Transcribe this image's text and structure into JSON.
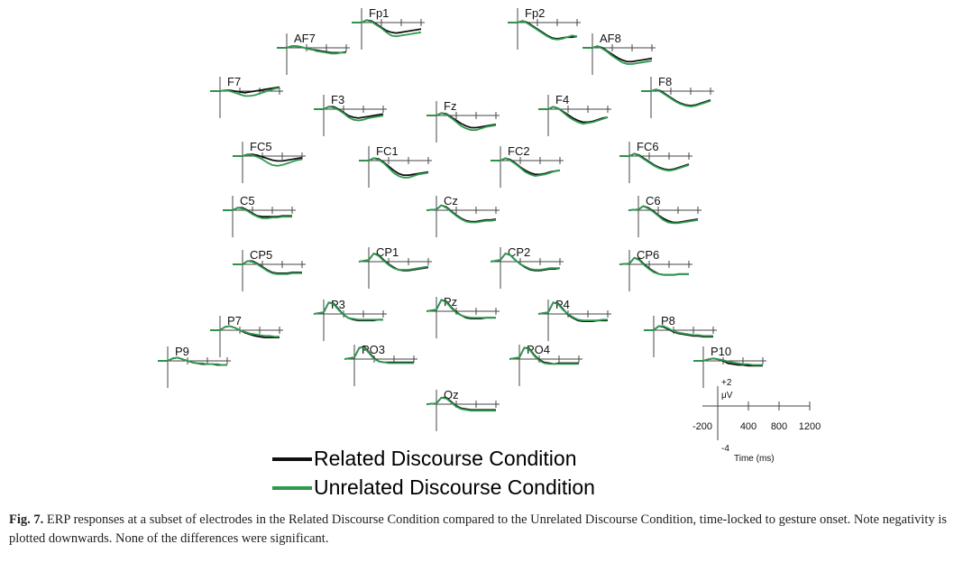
{
  "colors": {
    "related": "#111111",
    "unrelated": "#2e9a4f",
    "axis": "#444444"
  },
  "legend": [
    {
      "label": "Related Discourse Condition",
      "color": "#111111"
    },
    {
      "label": "Unrelated Discourse Condition",
      "color": "#2e9a4f"
    }
  ],
  "caption": {
    "label": "Fig. 7.",
    "text": "ERP responses at a subset of electrodes in the Related Discourse Condition compared to the Unrelated Discourse Condition, time-locked to gesture onset. Note negativity is plotted downwards. None of the differences were significant."
  },
  "scale_axis": {
    "x_ticks": [
      "-200",
      "400",
      "800",
      "1200"
    ],
    "x_label": "Time (ms)",
    "y_top": "+2",
    "y_unit": "μV",
    "y_bottom": "-4"
  },
  "chart_data": {
    "type": "line",
    "x_unit": "ms",
    "y_unit": "μV",
    "xlim": [
      -200,
      1200
    ],
    "ylim": [
      -4,
      2
    ],
    "negative_down": true,
    "x": [
      -200,
      0,
      100,
      200,
      300,
      400,
      500,
      600,
      700,
      800,
      900,
      1000,
      1100,
      1200
    ],
    "series_names": [
      "Related Discourse Condition",
      "Unrelated Discourse Condition"
    ],
    "electrodes": [
      {
        "name": "Fp1",
        "related": [
          0,
          0,
          0.3,
          0.2,
          -0.2,
          -0.6,
          -1.0,
          -1.2,
          -1.3,
          -1.2,
          -1.1,
          -1.0,
          -0.9,
          -0.8
        ],
        "unrelated": [
          0,
          0,
          0.3,
          0.1,
          -0.3,
          -0.7,
          -1.2,
          -1.6,
          -1.7,
          -1.6,
          -1.5,
          -1.4,
          -1.3,
          -1.2
        ]
      },
      {
        "name": "Fp2",
        "related": [
          0,
          0,
          0.2,
          0.0,
          -0.4,
          -0.8,
          -1.2,
          -1.6,
          -1.9,
          -2.0,
          -1.9,
          -1.8,
          -1.8,
          -1.7
        ],
        "unrelated": [
          0,
          0,
          0.2,
          -0.1,
          -0.5,
          -0.9,
          -1.3,
          -1.7,
          -2.0,
          -2.1,
          -2.0,
          -1.8,
          -1.6,
          -1.7
        ]
      },
      {
        "name": "AF7",
        "related": [
          0,
          0,
          0.2,
          0.2,
          0.1,
          -0.1,
          -0.2,
          -0.3,
          -0.4,
          -0.5,
          -0.6,
          -0.6,
          -0.6,
          -0.5
        ],
        "unrelated": [
          0,
          0,
          0.2,
          0.2,
          0.1,
          -0.1,
          -0.2,
          -0.4,
          -0.5,
          -0.6,
          -0.7,
          -0.7,
          -0.6,
          -0.6
        ]
      },
      {
        "name": "AF8",
        "related": [
          0,
          0,
          0.2,
          0.0,
          -0.4,
          -0.8,
          -1.2,
          -1.5,
          -1.7,
          -1.7,
          -1.6,
          -1.5,
          -1.4,
          -1.3
        ],
        "unrelated": [
          0,
          0,
          0.2,
          -0.1,
          -0.5,
          -1.0,
          -1.4,
          -1.8,
          -2.0,
          -2.0,
          -1.9,
          -1.8,
          -1.7,
          -1.6
        ]
      },
      {
        "name": "F7",
        "related": [
          0,
          0,
          0.1,
          0.1,
          0.0,
          -0.1,
          -0.2,
          -0.1,
          0.0,
          0.1,
          0.2,
          0.3,
          0.4,
          0.5
        ],
        "unrelated": [
          0,
          0,
          0.1,
          0.0,
          -0.2,
          -0.4,
          -0.6,
          -0.6,
          -0.5,
          -0.3,
          -0.1,
          0.1,
          0.3,
          0.4
        ]
      },
      {
        "name": "F8",
        "related": [
          0,
          0,
          0.2,
          0.0,
          -0.4,
          -0.8,
          -1.2,
          -1.5,
          -1.7,
          -1.8,
          -1.7,
          -1.5,
          -1.3,
          -1.1
        ],
        "unrelated": [
          0,
          0,
          0.2,
          -0.1,
          -0.5,
          -0.9,
          -1.3,
          -1.6,
          -1.8,
          -1.9,
          -1.8,
          -1.6,
          -1.4,
          -1.2
        ]
      },
      {
        "name": "F3",
        "related": [
          0,
          0,
          0.3,
          0.3,
          0.0,
          -0.4,
          -0.8,
          -1.0,
          -1.1,
          -1.0,
          -0.9,
          -0.8,
          -0.7,
          -0.6
        ],
        "unrelated": [
          0,
          0,
          0.3,
          0.2,
          -0.1,
          -0.5,
          -1.0,
          -1.3,
          -1.4,
          -1.3,
          -1.1,
          -1.0,
          -0.9,
          -0.8
        ]
      },
      {
        "name": "Fz",
        "related": [
          0,
          0,
          0.3,
          0.2,
          -0.2,
          -0.6,
          -1.0,
          -1.3,
          -1.5,
          -1.5,
          -1.4,
          -1.3,
          -1.2,
          -1.1
        ],
        "unrelated": [
          0,
          0,
          0.3,
          0.1,
          -0.3,
          -0.8,
          -1.3,
          -1.6,
          -1.8,
          -1.8,
          -1.6,
          -1.4,
          -1.3,
          -1.2
        ]
      },
      {
        "name": "F4",
        "related": [
          0,
          0,
          0.3,
          0.1,
          -0.3,
          -0.7,
          -1.1,
          -1.4,
          -1.6,
          -1.6,
          -1.5,
          -1.3,
          -1.1,
          -1.0
        ],
        "unrelated": [
          0,
          0,
          0.3,
          0.1,
          -0.4,
          -0.9,
          -1.3,
          -1.6,
          -1.8,
          -1.7,
          -1.6,
          -1.4,
          -1.2,
          -1.0
        ]
      },
      {
        "name": "FC5",
        "related": [
          0,
          0,
          0.2,
          0.2,
          0.1,
          -0.1,
          -0.3,
          -0.5,
          -0.6,
          -0.6,
          -0.5,
          -0.4,
          -0.3,
          -0.2
        ],
        "unrelated": [
          0,
          0,
          0.2,
          0.1,
          -0.1,
          -0.4,
          -0.8,
          -1.1,
          -1.2,
          -1.1,
          -0.9,
          -0.7,
          -0.5,
          -0.4
        ]
      },
      {
        "name": "FC1",
        "related": [
          0,
          0,
          0.3,
          0.2,
          -0.2,
          -0.7,
          -1.2,
          -1.6,
          -1.8,
          -1.8,
          -1.7,
          -1.6,
          -1.5,
          -1.4
        ],
        "unrelated": [
          0,
          0,
          0.3,
          0.1,
          -0.3,
          -0.9,
          -1.5,
          -1.9,
          -2.1,
          -2.1,
          -1.9,
          -1.7,
          -1.6,
          -1.5
        ]
      },
      {
        "name": "FC2",
        "related": [
          0,
          0,
          0.3,
          0.1,
          -0.3,
          -0.8,
          -1.2,
          -1.5,
          -1.7,
          -1.7,
          -1.6,
          -1.4,
          -1.3,
          -1.2
        ],
        "unrelated": [
          0,
          0,
          0.3,
          0.0,
          -0.4,
          -0.9,
          -1.4,
          -1.7,
          -1.9,
          -1.8,
          -1.7,
          -1.5,
          -1.3,
          -1.2
        ]
      },
      {
        "name": "FC6",
        "related": [
          0,
          0,
          0.3,
          0.1,
          -0.3,
          -0.7,
          -1.1,
          -1.4,
          -1.6,
          -1.7,
          -1.6,
          -1.4,
          -1.2,
          -1.0
        ],
        "unrelated": [
          0,
          0,
          0.3,
          0.0,
          -0.4,
          -0.8,
          -1.2,
          -1.5,
          -1.7,
          -1.8,
          -1.7,
          -1.5,
          -1.3,
          -1.1
        ]
      },
      {
        "name": "Cz",
        "related": [
          0,
          0.1,
          0.6,
          0.4,
          -0.1,
          -0.6,
          -1.0,
          -1.3,
          -1.4,
          -1.4,
          -1.3,
          -1.2,
          -1.2,
          -1.1
        ],
        "unrelated": [
          0,
          0.1,
          0.6,
          0.3,
          -0.2,
          -0.7,
          -1.1,
          -1.4,
          -1.5,
          -1.5,
          -1.4,
          -1.3,
          -1.3,
          -1.2
        ]
      },
      {
        "name": "C5",
        "related": [
          0,
          0,
          0.3,
          0.3,
          0.0,
          -0.4,
          -0.7,
          -0.8,
          -0.8,
          -0.8,
          -0.8,
          -0.7,
          -0.7,
          -0.7
        ],
        "unrelated": [
          0,
          0,
          0.3,
          0.2,
          -0.1,
          -0.5,
          -0.8,
          -1.0,
          -1.0,
          -0.9,
          -0.9,
          -0.8,
          -0.8,
          -0.8
        ]
      },
      {
        "name": "C6",
        "related": [
          0,
          0.1,
          0.5,
          0.3,
          -0.1,
          -0.6,
          -1.0,
          -1.3,
          -1.5,
          -1.5,
          -1.4,
          -1.3,
          -1.2,
          -1.1
        ],
        "unrelated": [
          0,
          0.1,
          0.5,
          0.2,
          -0.2,
          -0.7,
          -1.2,
          -1.5,
          -1.6,
          -1.6,
          -1.5,
          -1.4,
          -1.3,
          -1.2
        ]
      },
      {
        "name": "CP1",
        "related": [
          0,
          0.2,
          1.0,
          0.8,
          0.2,
          -0.3,
          -0.7,
          -1.0,
          -1.1,
          -1.1,
          -1.0,
          -0.9,
          -0.8,
          -0.7
        ],
        "unrelated": [
          0,
          0.2,
          1.0,
          0.7,
          0.1,
          -0.4,
          -0.8,
          -1.0,
          -1.0,
          -1.0,
          -0.9,
          -0.8,
          -0.7,
          -0.6
        ]
      },
      {
        "name": "CP2",
        "related": [
          0,
          0.2,
          1.0,
          0.8,
          0.2,
          -0.3,
          -0.7,
          -1.0,
          -1.1,
          -1.1,
          -1.0,
          -0.9,
          -0.9,
          -0.8
        ],
        "unrelated": [
          0,
          0.2,
          1.0,
          0.8,
          0.2,
          -0.3,
          -0.6,
          -0.9,
          -1.0,
          -1.0,
          -0.9,
          -0.8,
          -0.8,
          -0.8
        ]
      },
      {
        "name": "CP5",
        "related": [
          0,
          0,
          0.4,
          0.4,
          0.1,
          -0.3,
          -0.7,
          -1.0,
          -1.1,
          -1.1,
          -1.1,
          -1.0,
          -1.0,
          -1.0
        ],
        "unrelated": [
          0,
          0,
          0.4,
          0.3,
          0.0,
          -0.4,
          -0.8,
          -1.1,
          -1.2,
          -1.2,
          -1.2,
          -1.1,
          -1.1,
          -1.1
        ]
      },
      {
        "name": "CP6",
        "related": [
          0,
          0.1,
          0.8,
          0.6,
          0.0,
          -0.5,
          -0.9,
          -1.2,
          -1.3,
          -1.3,
          -1.3,
          -1.2,
          -1.2,
          -1.2
        ],
        "unrelated": [
          0,
          0.1,
          0.8,
          0.5,
          -0.1,
          -0.6,
          -1.0,
          -1.2,
          -1.3,
          -1.3,
          -1.3,
          -1.2,
          -1.2,
          -1.2
        ]
      },
      {
        "name": "P3",
        "related": [
          0,
          0.2,
          1.4,
          1.3,
          0.6,
          -0.1,
          -0.5,
          -0.7,
          -0.8,
          -0.8,
          -0.8,
          -0.8,
          -0.7,
          -0.7
        ],
        "unrelated": [
          0,
          0.2,
          1.4,
          1.2,
          0.5,
          -0.1,
          -0.5,
          -0.6,
          -0.7,
          -0.7,
          -0.7,
          -0.7,
          -0.7,
          -0.7
        ]
      },
      {
        "name": "Pz",
        "related": [
          0,
          0.2,
          1.4,
          1.2,
          0.5,
          -0.1,
          -0.5,
          -0.8,
          -0.9,
          -0.9,
          -0.9,
          -0.8,
          -0.8,
          -0.8
        ],
        "unrelated": [
          0,
          0.2,
          1.4,
          1.1,
          0.4,
          -0.2,
          -0.5,
          -0.7,
          -0.8,
          -0.8,
          -0.8,
          -0.8,
          -0.8,
          -0.8
        ]
      },
      {
        "name": "P4",
        "related": [
          0,
          0.2,
          1.4,
          1.3,
          0.6,
          -0.1,
          -0.5,
          -0.8,
          -0.9,
          -0.9,
          -0.9,
          -0.8,
          -0.8,
          -0.8
        ],
        "unrelated": [
          0,
          0.2,
          1.4,
          1.2,
          0.5,
          0.0,
          -0.4,
          -0.7,
          -0.8,
          -0.8,
          -0.8,
          -0.8,
          -0.7,
          -0.7
        ]
      },
      {
        "name": "P7",
        "related": [
          0,
          0,
          0.4,
          0.5,
          0.3,
          0.0,
          -0.3,
          -0.5,
          -0.7,
          -0.8,
          -0.9,
          -0.9,
          -0.9,
          -0.9
        ],
        "unrelated": [
          0,
          0,
          0.4,
          0.5,
          0.3,
          0.0,
          -0.2,
          -0.4,
          -0.5,
          -0.6,
          -0.7,
          -0.7,
          -0.8,
          -0.8
        ]
      },
      {
        "name": "P8",
        "related": [
          0,
          0,
          0.5,
          0.4,
          0.1,
          -0.2,
          -0.4,
          -0.5,
          -0.6,
          -0.7,
          -0.7,
          -0.8,
          -0.8,
          -0.8
        ],
        "unrelated": [
          0,
          0,
          0.5,
          0.5,
          0.2,
          -0.1,
          -0.3,
          -0.4,
          -0.5,
          -0.6,
          -0.6,
          -0.7,
          -0.7,
          -0.7
        ]
      },
      {
        "name": "P9",
        "related": [
          0,
          0,
          0.3,
          0.4,
          0.2,
          0.0,
          -0.2,
          -0.3,
          -0.4,
          -0.4,
          -0.4,
          -0.5,
          -0.5,
          -0.5
        ],
        "unrelated": [
          0,
          0,
          0.3,
          0.4,
          0.2,
          0.0,
          -0.2,
          -0.3,
          -0.3,
          -0.4,
          -0.4,
          -0.4,
          -0.5,
          -0.5
        ]
      },
      {
        "name": "P10",
        "related": [
          0,
          0,
          0.2,
          0.3,
          0.2,
          0.0,
          -0.3,
          -0.4,
          -0.5,
          -0.5,
          -0.6,
          -0.6,
          -0.6,
          -0.6
        ],
        "unrelated": [
          0,
          0,
          0.2,
          0.3,
          0.2,
          0.1,
          -0.1,
          -0.2,
          -0.3,
          -0.4,
          -0.4,
          -0.5,
          -0.5,
          -0.5
        ]
      },
      {
        "name": "PO3",
        "related": [
          0,
          0.2,
          1.4,
          1.5,
          0.8,
          0.1,
          -0.3,
          -0.4,
          -0.4,
          -0.4,
          -0.4,
          -0.4,
          -0.4,
          -0.4
        ],
        "unrelated": [
          0,
          0.2,
          1.4,
          1.4,
          0.7,
          0.0,
          -0.3,
          -0.4,
          -0.5,
          -0.5,
          -0.5,
          -0.5,
          -0.5,
          -0.5
        ]
      },
      {
        "name": "PO4",
        "related": [
          0,
          0.2,
          1.4,
          1.3,
          0.5,
          -0.1,
          -0.4,
          -0.5,
          -0.6,
          -0.5,
          -0.5,
          -0.5,
          -0.5,
          -0.5
        ],
        "unrelated": [
          0,
          0.2,
          1.4,
          1.2,
          0.4,
          -0.2,
          -0.5,
          -0.6,
          -0.6,
          -0.6,
          -0.6,
          -0.6,
          -0.6,
          -0.6
        ]
      },
      {
        "name": "Oz",
        "related": [
          0,
          0.1,
          0.8,
          0.8,
          0.3,
          -0.2,
          -0.5,
          -0.6,
          -0.7,
          -0.7,
          -0.7,
          -0.7,
          -0.7,
          -0.7
        ],
        "unrelated": [
          0,
          0.1,
          0.8,
          0.7,
          0.2,
          -0.3,
          -0.6,
          -0.7,
          -0.8,
          -0.8,
          -0.8,
          -0.8,
          -0.8,
          -0.8
        ]
      }
    ]
  }
}
